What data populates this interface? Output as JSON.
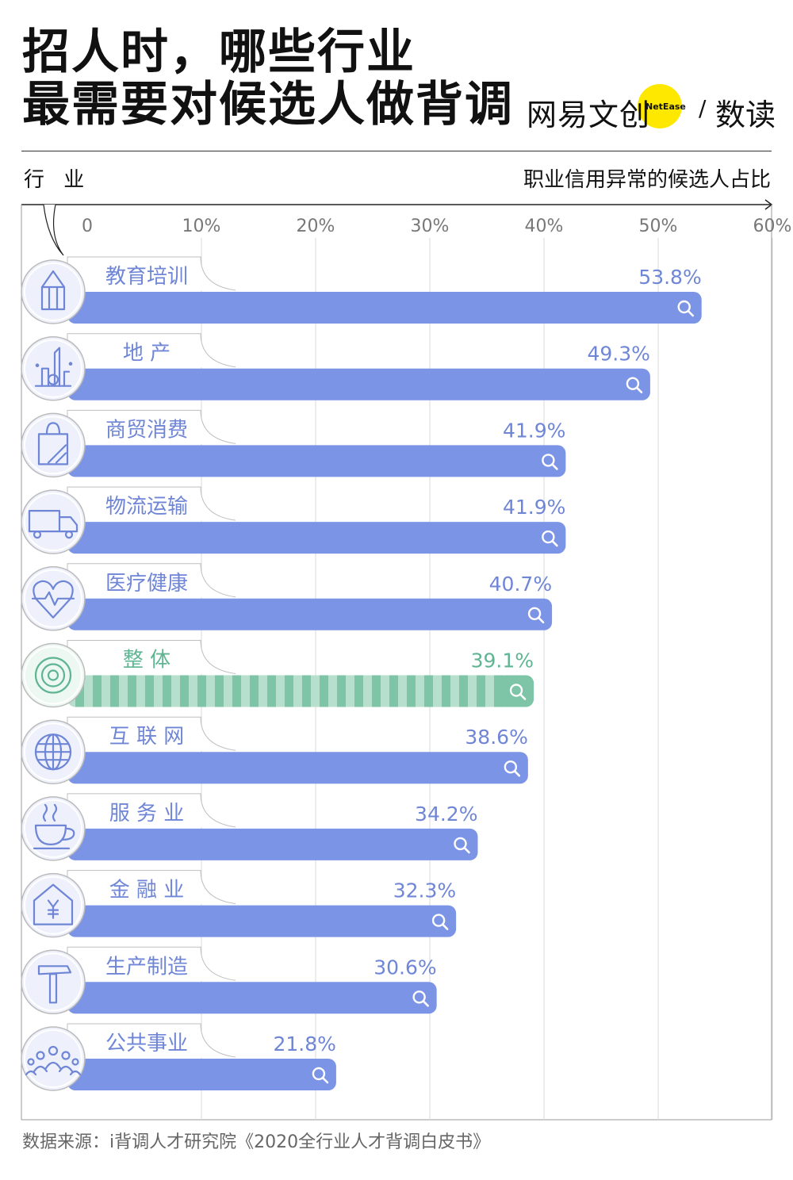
{
  "title": {
    "line1": "招人时，哪些行业",
    "line2": "最需要对候选人做背调"
  },
  "brand": {
    "main": "网易文创",
    "en": "NetEase",
    "slash": "/",
    "sub": "数读",
    "accent": "#ffe800"
  },
  "source": "数据来源：i背调人才研究院《2020全行业人才背调白皮书》",
  "chart_data": {
    "type": "bar",
    "orientation": "horizontal",
    "ylabel": "行 业",
    "xlabel": "职业信用异常的候选人占比",
    "ticks": [
      "0",
      "10%",
      "20%",
      "30%",
      "40%",
      "50%",
      "60%"
    ],
    "xlim": [
      0,
      60
    ],
    "grid": true,
    "categories": [
      "教育培训",
      "地 产",
      "商贸消费",
      "物流运输",
      "医疗健康",
      "整 体",
      "互 联 网",
      "服 务 业",
      "金 融 业",
      "生产制造",
      "公共事业"
    ],
    "values": [
      53.8,
      49.3,
      41.9,
      41.9,
      40.7,
      39.1,
      38.6,
      34.2,
      32.3,
      30.6,
      21.8
    ],
    "value_labels": [
      "53.8%",
      "49.3%",
      "41.9%",
      "41.9%",
      "40.7%",
      "39.1%",
      "38.6%",
      "34.2%",
      "32.3%",
      "30.6%",
      "21.8%"
    ],
    "icons": [
      "pencil-icon",
      "city-icon",
      "shopping-bag-icon",
      "truck-icon",
      "heart-pulse-icon",
      "target-icon",
      "globe-icon",
      "coffee-cup-icon",
      "bank-icon",
      "hammer-icon",
      "people-icon"
    ],
    "highlight": [
      false,
      false,
      false,
      false,
      false,
      true,
      false,
      false,
      false,
      false,
      false
    ],
    "colors": {
      "bar": "#7b94e6",
      "highlight": "#7ec4a6",
      "highlight_light": "#b6e0cd",
      "text": "#6f86d6",
      "highlight_text": "#5fb592",
      "grid": "#d9d9d9"
    }
  }
}
